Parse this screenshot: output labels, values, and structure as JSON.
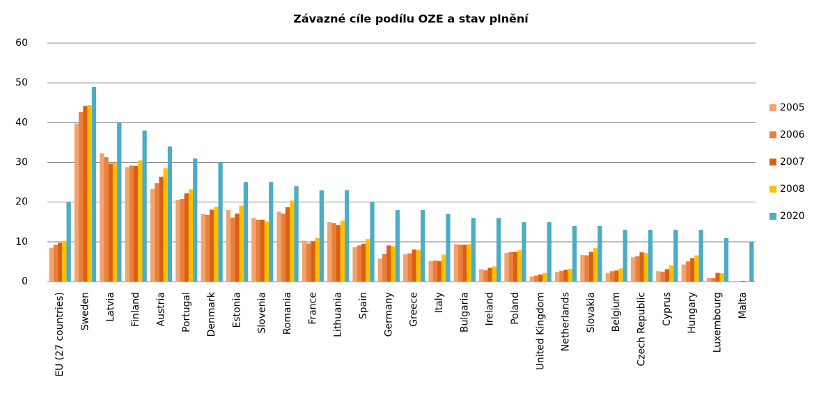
{
  "chart_data": {
    "type": "bar",
    "title": "Závazné cíle podílu OZE a stav plnění",
    "categories": [
      "EU (27 countries)",
      "Sweden",
      "Latvia",
      "Finland",
      "Austria",
      "Portugal",
      "Denmark",
      "Estonia",
      "Slovenia",
      "Romania",
      "France",
      "Lithuania",
      "Spain",
      "Germany",
      "Greece",
      "Italy",
      "Bulgaria",
      "Ireland",
      "Poland",
      "United Kingdom",
      "Netherlands",
      "Slovakia",
      "Belgium",
      "Czech Republic",
      "Cyprus",
      "Hungary",
      "Luxembourg",
      "Malta"
    ],
    "series": [
      {
        "name": "2005",
        "color": "#f2a46f",
        "values": [
          8.5,
          39.8,
          32.3,
          28.8,
          23.3,
          20.5,
          17,
          18,
          16,
          17.6,
          10.3,
          15,
          8.7,
          5.8,
          6.9,
          5.2,
          9.4,
          3.1,
          7.2,
          1.3,
          2.4,
          6.7,
          2.2,
          6.1,
          2.6,
          4.3,
          0.9,
          0
        ]
      },
      {
        "name": "2006",
        "color": "#e8803a",
        "values": [
          9.3,
          42.7,
          31.3,
          29.2,
          24.8,
          20.8,
          16.8,
          16.1,
          15.6,
          17.1,
          9.6,
          14.7,
          9.1,
          7,
          7.1,
          5.3,
          9.3,
          2.9,
          7.5,
          1.5,
          2.7,
          6.6,
          2.6,
          6.4,
          2.5,
          5.1,
          0.9,
          0.1
        ]
      },
      {
        "name": "2007",
        "color": "#dd5e12",
        "values": [
          9.8,
          44.2,
          29.7,
          29.1,
          26.4,
          22.2,
          18.1,
          17.1,
          15.6,
          18.7,
          10.2,
          14.2,
          9.5,
          9.1,
          8.1,
          5.2,
          9.3,
          3.5,
          7.5,
          1.8,
          3,
          7.5,
          2.8,
          7.4,
          3.1,
          5.9,
          2.2,
          0.2
        ]
      },
      {
        "name": "2008",
        "color": "#ffc000",
        "values": [
          10.3,
          44.4,
          29.9,
          30.5,
          28.5,
          23.2,
          18.8,
          19.1,
          15.1,
          20.4,
          11,
          15.3,
          10.7,
          8.9,
          8,
          6.8,
          9.4,
          3.8,
          7.9,
          2.2,
          3.2,
          8.4,
          3.3,
          7.2,
          4.1,
          6.6,
          2.1,
          0.2
        ]
      },
      {
        "name": "2020",
        "color": "#4bacc6",
        "values": [
          20,
          49,
          40,
          38,
          34,
          31,
          30,
          25,
          25,
          24,
          23,
          23,
          20,
          18,
          18,
          17,
          16,
          16,
          15,
          15,
          14,
          14,
          13,
          13,
          13,
          13,
          11,
          10
        ]
      }
    ],
    "ylim": [
      0,
      60
    ],
    "yticks": [
      0,
      10,
      20,
      30,
      40,
      50,
      60
    ],
    "grid": true,
    "legend": "right"
  }
}
